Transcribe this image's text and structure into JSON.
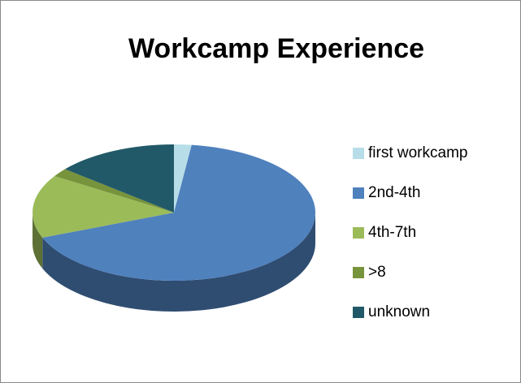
{
  "chart_data": {
    "type": "pie",
    "title": "Workcamp Experience",
    "categories": [
      "first workcamp",
      "2nd-4th",
      "4th-7th",
      ">8",
      "unknown"
    ],
    "values": [
      2,
      67,
      15,
      2,
      14
    ],
    "colors": [
      "#b7dee8",
      "#4f81bd",
      "#9bbb59",
      "#77933c",
      "#215968"
    ],
    "legend": "right"
  }
}
